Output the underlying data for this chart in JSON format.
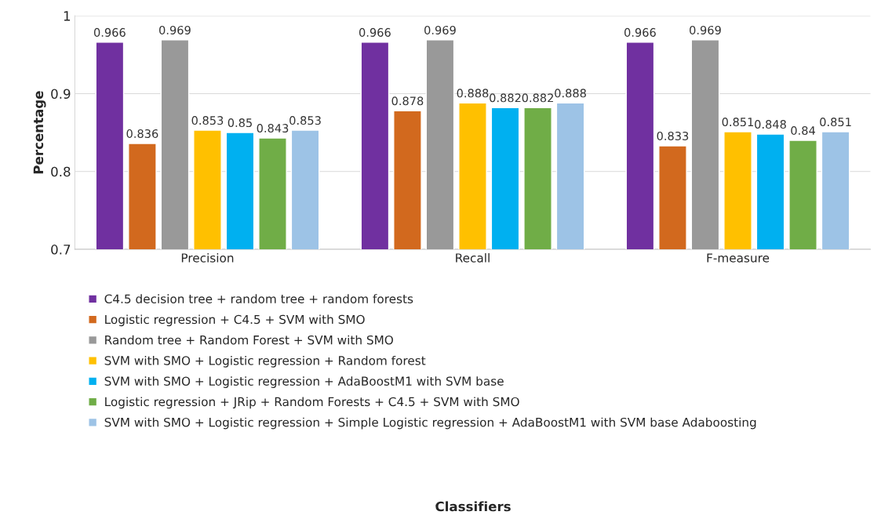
{
  "chart_data": {
    "type": "bar",
    "ylabel": "Percentage",
    "annotations": [
      "Classifiers"
    ],
    "categories": [
      "Precision",
      "Recall",
      "F-measure"
    ],
    "series": [
      {
        "name": "C4.5 decision tree + random tree + random forests",
        "color": "#7030a0",
        "values": [
          0.966,
          0.966,
          0.966
        ]
      },
      {
        "name": "Logistic regression + C4.5 + SVM with SMO",
        "color": "#d2691e",
        "values": [
          0.836,
          0.878,
          0.833
        ]
      },
      {
        "name": "Random tree + Random Forest + SVM with SMO",
        "color": "#999999",
        "values": [
          0.969,
          0.969,
          0.969
        ]
      },
      {
        "name": "SVM with SMO + Logistic regression + Random forest",
        "color": "#ffc000",
        "values": [
          0.853,
          0.888,
          0.851
        ]
      },
      {
        "name": "SVM with SMO + Logistic regression + AdaBoostM1 with SVM base",
        "color": "#00b0f0",
        "values": [
          0.85,
          0.882,
          0.848
        ]
      },
      {
        "name": "Logistic regression + JRip + Random Forests + C4.5 + SVM with SMO",
        "color": "#70ad47",
        "values": [
          0.843,
          0.882,
          0.84
        ]
      },
      {
        "name": "SVM with SMO + Logistic regression + Simple Logistic regression + AdaBoostM1 with SVM base Adaboosting",
        "color": "#9dc3e6",
        "values": [
          0.853,
          0.888,
          0.851
        ]
      }
    ],
    "ylim": [
      0.7,
      1
    ],
    "yticks": [
      0.7,
      0.8,
      0.9,
      1
    ],
    "grid": "y",
    "legend": "bottom",
    "data_labels": true
  }
}
